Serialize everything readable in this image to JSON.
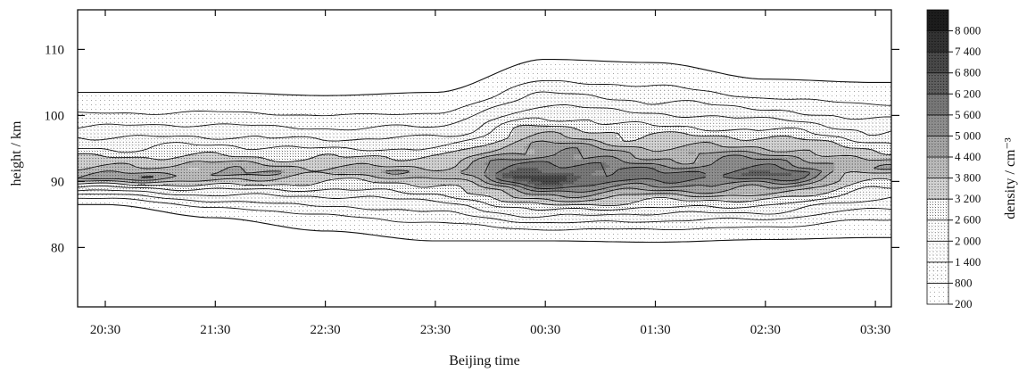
{
  "chart_data": {
    "type": "heatmap",
    "title": "",
    "xlabel": "Beijing time",
    "ylabel": "height / km",
    "x_ticks": [
      "20:30",
      "21:30",
      "22:30",
      "23:30",
      "00:30",
      "01:30",
      "02:30",
      "03:30"
    ],
    "y_ticks": [
      "80",
      "90",
      "100",
      "110"
    ],
    "ylim": [
      71,
      116
    ],
    "colorbar": {
      "label": "density / cm⁻³",
      "levels": [
        "200",
        "800",
        "1 400",
        "2 000",
        "2 600",
        "3 200",
        "3 800",
        "4 400",
        "5 000",
        "5 600",
        "6 200",
        "6 800",
        "7 400",
        "8 000"
      ]
    },
    "layer": {
      "x_hours": [
        0,
        1,
        2,
        3,
        4,
        5,
        6,
        7
      ],
      "bottom_km": [
        86.5,
        84.5,
        82.5,
        81.0,
        81.0,
        80.8,
        81.2,
        81.5
      ],
      "top_km": [
        103.5,
        103.5,
        103.0,
        103.5,
        108.5,
        108.0,
        105.5,
        105.0
      ],
      "peak_center_km": [
        90.5,
        91.0,
        91.5,
        91.5,
        90.5,
        90.5,
        91.0,
        92.0
      ],
      "peak_density": [
        4600,
        4600,
        4100,
        4200,
        6900,
        5800,
        6200,
        4200
      ]
    }
  }
}
